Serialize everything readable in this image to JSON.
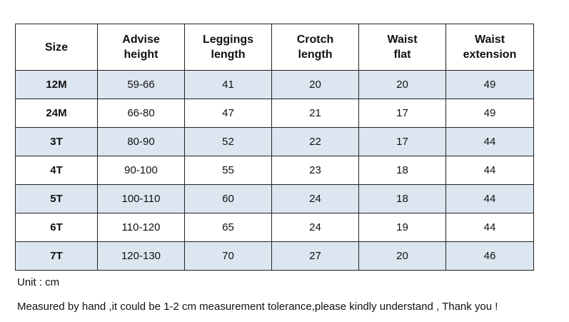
{
  "table": {
    "headers": [
      [
        "Size"
      ],
      [
        "Advise",
        "height"
      ],
      [
        "Leggings",
        "length"
      ],
      [
        "Crotch",
        "length"
      ],
      [
        "Waist",
        "flat"
      ],
      [
        "Waist",
        "extension"
      ]
    ],
    "rows": [
      [
        "12M",
        "59-66",
        "41",
        "20",
        "20",
        "49"
      ],
      [
        "24M",
        "66-80",
        "47",
        "21",
        "17",
        "49"
      ],
      [
        "3T",
        "80-90",
        "52",
        "22",
        "17",
        "44"
      ],
      [
        "4T",
        "90-100",
        "55",
        "23",
        "18",
        "44"
      ],
      [
        "5T",
        "100-110",
        "60",
        "24",
        "18",
        "44"
      ],
      [
        "6T",
        "110-120",
        "65",
        "24",
        "19",
        "44"
      ],
      [
        "7T",
        "120-130",
        "70",
        "27",
        "20",
        "46"
      ]
    ],
    "shaded_row_color": "#dce6f1"
  },
  "notes": {
    "unit": "Unit : cm",
    "measure": "Measured by hand ,it could be 1-2 cm measurement tolerance,please kindly understand , Thank you !"
  }
}
